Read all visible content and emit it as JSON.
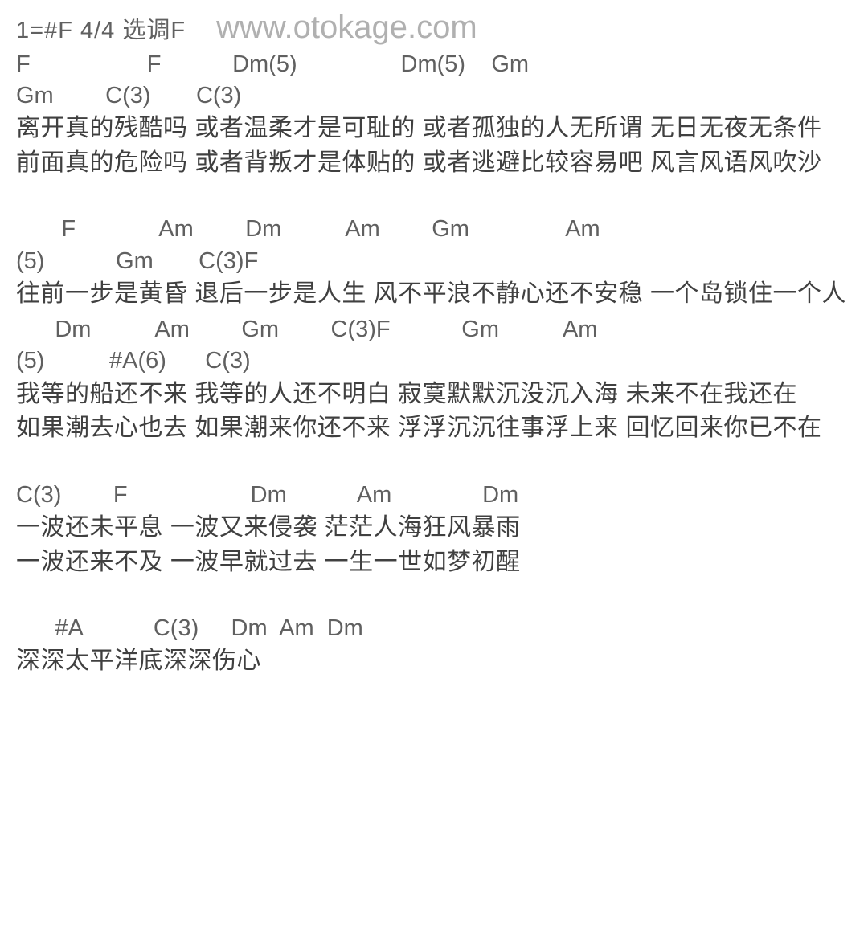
{
  "header": {
    "keySignature": "1=#F  4/4  选调F",
    "watermark": "www.otokage.com"
  },
  "sections": [
    {
      "chordLines": [
        "F                  F           Dm(5)                Dm(5)    Gm",
        "Gm        C(3)       C(3)"
      ],
      "lyricLines": [
        "离开真的残酷吗  或者温柔才是可耻的  或者孤独的人无所谓  无日无夜无条件",
        "前面真的危险吗  或者背叛才是体贴的  或者逃避比较容易吧  风言风语风吹沙"
      ]
    },
    {
      "chordLines": [
        "       F             Am        Dm          Am        Gm               Am",
        "(5)           Gm       C(3)F"
      ],
      "lyricLines": [
        "往前一步是黄昏  退后一步是人生  风不平浪不静心还不安稳  一个岛锁住一个人"
      ]
    },
    {
      "chordLines": [
        "      Dm          Am        Gm        C(3)F           Gm          Am",
        "(5)          #A(6)      C(3)"
      ],
      "lyricLines": [
        "我等的船还不来  我等的人还不明白  寂寞默默沉没沉入海  未来不在我还在",
        "如果潮去心也去  如果潮来你还不来  浮浮沉沉往事浮上来  回忆回来你已不在"
      ]
    },
    {
      "chordLines": [
        "C(3)        F                   Dm           Am              Dm"
      ],
      "lyricLines": [
        "一波还未平息  一波又来侵袭  茫茫人海狂风暴雨",
        "一波还来不及  一波早就过去  一生一世如梦初醒"
      ]
    },
    {
      "chordLines": [
        "      #A           C(3)     Dm  Am  Dm"
      ],
      "lyricLines": [
        "深深太平洋底深深伤心"
      ]
    }
  ],
  "colors": {
    "background": "#ffffff",
    "chordText": "#606060",
    "lyricText": "#404040",
    "watermarkText": "#b0b0b0"
  },
  "typography": {
    "chordFontSize": 29,
    "lyricFontSize": 30,
    "watermarkFontSize": 40
  }
}
